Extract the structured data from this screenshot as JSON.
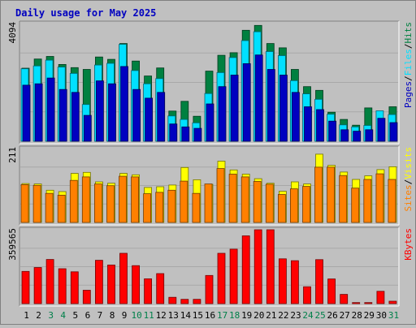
{
  "chart_data": {
    "type": "bar",
    "title": "Daily usage for May 2025",
    "categories": [
      "1",
      "2",
      "3",
      "4",
      "5",
      "6",
      "7",
      "8",
      "9",
      "10",
      "11",
      "12",
      "13",
      "14",
      "15",
      "16",
      "17",
      "18",
      "19",
      "20",
      "21",
      "22",
      "23",
      "24",
      "25",
      "26",
      "27",
      "28",
      "29",
      "30",
      "31"
    ],
    "weekend_days": [
      "3",
      "4",
      "10",
      "11",
      "17",
      "18",
      "24",
      "25",
      "31"
    ],
    "panels": [
      {
        "name": "hits-files-pages",
        "ymax_label": "4094",
        "ylim": [
          0,
          4094
        ],
        "axis_label": [
          "Pages",
          "Files",
          "Hits"
        ],
        "series": [
          {
            "name": "Hits",
            "color": "#008040",
            "values": [
              2540,
              2860,
              2950,
              2670,
              2560,
              2500,
              2930,
              2850,
              3400,
              2790,
              2270,
              2550,
              1050,
              1390,
              870,
              2440,
              2990,
              3080,
              3860,
              4030,
              3400,
              3250,
              2500,
              1900,
              1770,
              1010,
              760,
              560,
              1160,
              600,
              1200
            ]
          },
          {
            "name": "Files",
            "color": "#00e0ff",
            "values": [
              2520,
              2620,
              2820,
              2580,
              2360,
              1280,
              2650,
              2710,
              3370,
              2460,
              2000,
              2180,
              880,
              760,
              640,
              1660,
              2390,
              2910,
              3500,
              3810,
              3120,
              2980,
              2110,
              1650,
              1460,
              940,
              570,
              500,
              550,
              1060,
              930
            ]
          },
          {
            "name": "Pages",
            "color": "#0000c0",
            "values": [
              1950,
              2000,
              2200,
              1800,
              1700,
              900,
              2100,
              2000,
              2600,
              1800,
              1500,
              1700,
              600,
              500,
              450,
              1300,
              1900,
              2300,
              2700,
              3000,
              2500,
              2300,
              1700,
              1200,
              1100,
              700,
              400,
              350,
              400,
              800,
              650
            ]
          }
        ]
      },
      {
        "name": "visits-sites",
        "ymax_label": "211",
        "ylim": [
          0,
          211
        ],
        "axis_label": [
          "Sites",
          "Visits"
        ],
        "series": [
          {
            "name": "Visits",
            "color": "#ffff00",
            "values": [
              111,
              110,
              92,
              88,
              140,
              143,
              116,
              112,
              140,
              136,
              100,
              102,
              107,
              157,
              122,
              109,
              175,
              150,
              138,
              125,
              112,
              89,
              116,
              110,
              195,
              163,
              144,
              123,
              133,
              151,
              159
            ]
          },
          {
            "name": "Sites",
            "color": "#ff8000",
            "values": [
              108,
              106,
              83,
              78,
              120,
              130,
              110,
              105,
              132,
              130,
              82,
              86,
              92,
              118,
              83,
              110,
              154,
              138,
              130,
              117,
              109,
              80,
              96,
              103,
              158,
              158,
              134,
              98,
              123,
              139,
              123
            ]
          }
        ]
      },
      {
        "name": "kbytes",
        "ymax_label": "359565",
        "ylim": [
          0,
          359565
        ],
        "axis_label": [
          "KBytes"
        ],
        "series": [
          {
            "name": "KBytes",
            "color": "#ff0000",
            "values": [
              157000,
              176000,
              215000,
              170000,
              155000,
              65000,
              211000,
              188000,
              245000,
              185000,
              121000,
              146000,
              31000,
              21000,
              21000,
              137000,
              245000,
              265000,
              330000,
              365000,
              363000,
              218000,
              209000,
              82000,
              214000,
              120000,
              45000,
              5000,
              5000,
              60000,
              12000
            ]
          }
        ]
      }
    ]
  }
}
